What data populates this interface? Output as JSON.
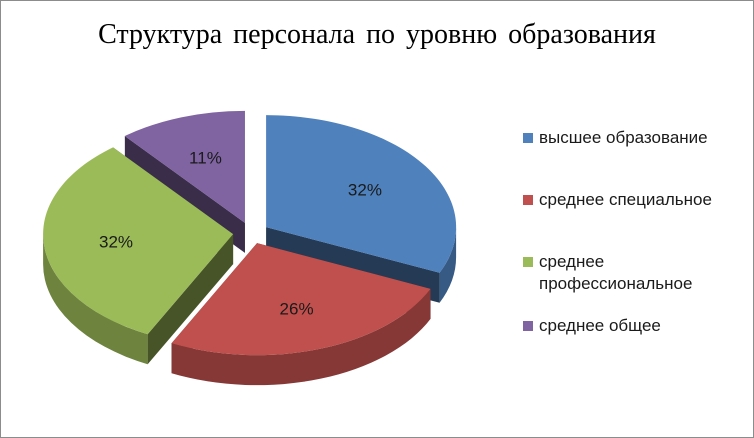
{
  "chart_data": {
    "type": "pie",
    "title": "Структура  персонала  по уровню  образования",
    "categories": [
      "высшее образование",
      "среднее специальное",
      "среднее профессиональное",
      "среднее общее"
    ],
    "values": [
      32,
      26,
      32,
      11
    ],
    "labels": [
      "32%",
      "26%",
      "32%",
      "11%"
    ],
    "colors": [
      "#4f81bd",
      "#c0504d",
      "#9bbb59",
      "#8064a2"
    ],
    "legend": "right",
    "exploded": true,
    "three_d": true
  }
}
